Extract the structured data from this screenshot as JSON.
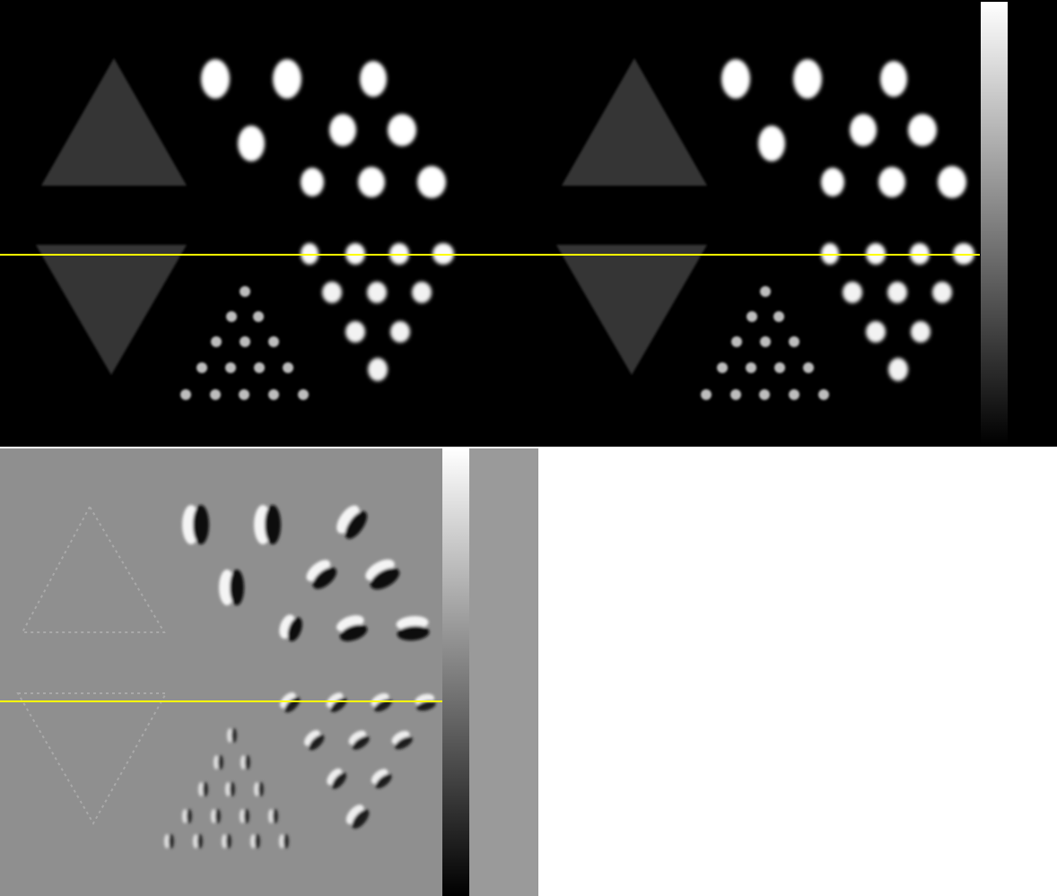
{
  "figure": {
    "top_images": [
      {
        "name": "reconstruction-left"
      },
      {
        "name": "reconstruction-right"
      }
    ],
    "bottom_image": {
      "name": "difference-image"
    },
    "profile_line_color": "#ffff00",
    "colormap": "grayscale",
    "colorbars": [
      {
        "name": "colorbar-top",
        "gradient": [
          "#ffffff",
          "#000000"
        ]
      },
      {
        "name": "colorbar-bottom",
        "gradient": [
          "#ffffff",
          "#000000"
        ]
      }
    ],
    "background_colors": {
      "top": "#000000",
      "bottom": "#9a9a9a",
      "difference_field": "#8f8f8f"
    }
  }
}
